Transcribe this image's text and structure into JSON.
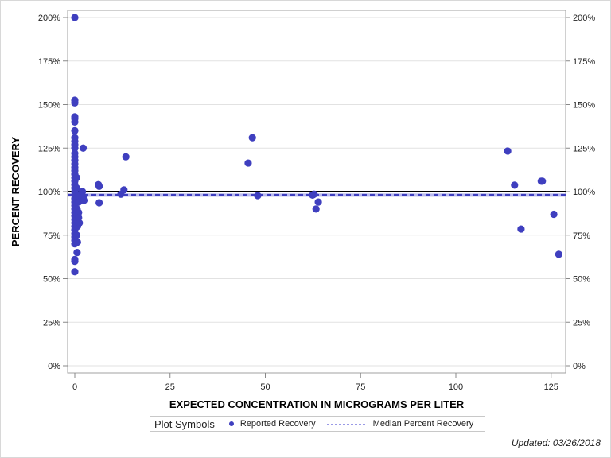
{
  "chart_data": {
    "type": "scatter",
    "title": "",
    "xlabel": "EXPECTED CONCENTRATION IN MICROGRAMS PER LITER",
    "ylabel": "PERCENT RECOVERY",
    "xlim": [
      -1,
      128
    ],
    "ylim": [
      0,
      200
    ],
    "x_ticks": [
      0,
      25,
      50,
      75,
      100,
      125
    ],
    "x_tick_labels": [
      "0",
      "25",
      "50",
      "75",
      "100",
      "125"
    ],
    "y_ticks": [
      0,
      25,
      50,
      75,
      100,
      125,
      150,
      175,
      200
    ],
    "y_tick_labels": [
      "0%",
      "25%",
      "50%",
      "75%",
      "100%",
      "125%",
      "150%",
      "175%",
      "200%"
    ],
    "y2_tick_labels": [
      "0%",
      "25%",
      "50%",
      "75%",
      "100%",
      "125%",
      "150%",
      "175%",
      "200%"
    ],
    "grid": true,
    "reference_line": {
      "y": 100,
      "color": "#000000"
    },
    "series": [
      {
        "name": "Reported Recovery",
        "color": "#3f3fbf",
        "points": [
          [
            0,
            200
          ],
          [
            0,
            152.5
          ],
          [
            0,
            151
          ],
          [
            0,
            143
          ],
          [
            0,
            142
          ],
          [
            0,
            140
          ],
          [
            0,
            135
          ],
          [
            0,
            131
          ],
          [
            0,
            129
          ],
          [
            0,
            127
          ],
          [
            0,
            125
          ],
          [
            0,
            122
          ],
          [
            0,
            120
          ],
          [
            0,
            118
          ],
          [
            0,
            116
          ],
          [
            0,
            114
          ],
          [
            0,
            112
          ],
          [
            0,
            110
          ],
          [
            0,
            108
          ],
          [
            0,
            106
          ],
          [
            0,
            104
          ],
          [
            0,
            102
          ],
          [
            0,
            100
          ],
          [
            0,
            98
          ],
          [
            0,
            96
          ],
          [
            0,
            94
          ],
          [
            0,
            92
          ],
          [
            0,
            90
          ],
          [
            0,
            88
          ],
          [
            0,
            86
          ],
          [
            0,
            84
          ],
          [
            0,
            82
          ],
          [
            0,
            80
          ],
          [
            0,
            78
          ],
          [
            0,
            76
          ],
          [
            0,
            74
          ],
          [
            0,
            72
          ],
          [
            0,
            70
          ],
          [
            0,
            61
          ],
          [
            0,
            60
          ],
          [
            0,
            54
          ],
          [
            0.5,
            108
          ],
          [
            0.5,
            102
          ],
          [
            0.5,
            96
          ],
          [
            0.6,
            90
          ],
          [
            0.6,
            84
          ],
          [
            0.7,
            80
          ],
          [
            0.5,
            75
          ],
          [
            0.7,
            71
          ],
          [
            0.6,
            65
          ],
          [
            1,
            98
          ],
          [
            1,
            94
          ],
          [
            1,
            88
          ],
          [
            1,
            85
          ],
          [
            1.2,
            82
          ],
          [
            2,
            100
          ],
          [
            2.2,
            97
          ],
          [
            2.4,
            95
          ],
          [
            2.2,
            125
          ],
          [
            6.2,
            104
          ],
          [
            6.4,
            103
          ],
          [
            6.4,
            93.6
          ],
          [
            12.1,
            98.5
          ],
          [
            12.9,
            101
          ],
          [
            13.4,
            120
          ],
          [
            45.5,
            116.4
          ],
          [
            46.6,
            131
          ],
          [
            48,
            97.7
          ],
          [
            62.4,
            98
          ],
          [
            62.8,
            98.5
          ],
          [
            63.3,
            90
          ],
          [
            63.9,
            94
          ],
          [
            113.6,
            123.3
          ],
          [
            115.4,
            103.7
          ],
          [
            117.1,
            78.5
          ],
          [
            122.4,
            106
          ],
          [
            122.7,
            106
          ],
          [
            125.7,
            87
          ],
          [
            127,
            64
          ]
        ]
      },
      {
        "name": "Median Percent Recovery",
        "type": "line",
        "style": "dashed",
        "color": "#3f3fbf",
        "y": 98
      }
    ],
    "legend": {
      "title": "Plot Symbols",
      "position": "bottom",
      "entries": [
        "Reported Recovery",
        "Median Percent Recovery"
      ]
    }
  },
  "footer": {
    "updated": "Updated: 03/26/2018"
  }
}
